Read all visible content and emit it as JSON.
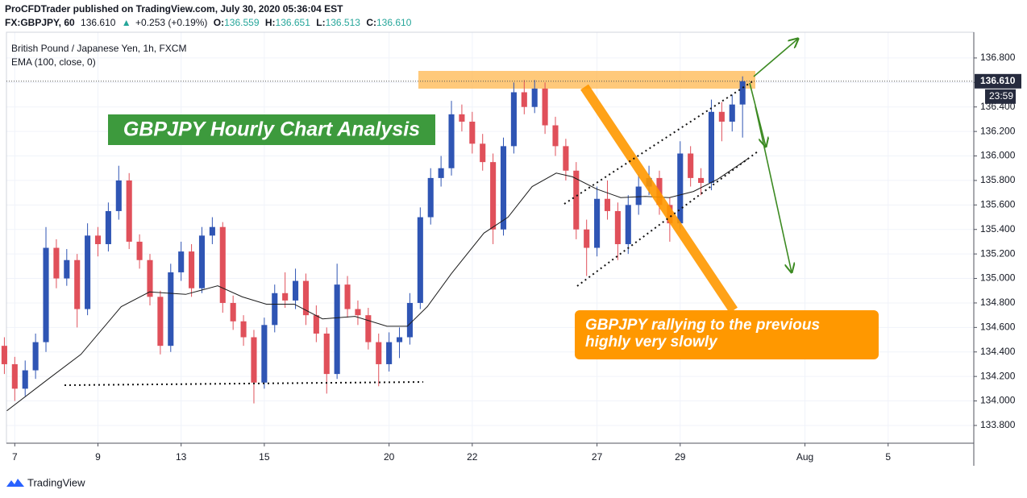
{
  "header": {
    "author_line": "ProCFDTrader published on TradingView.com, July 30, 2020 05:36:04 EST",
    "symbol": "FX:GBPJPY, 60",
    "last": "136.610",
    "change": "+0.253 (+0.19%)",
    "open_label": "O:",
    "open": "136.559",
    "high_label": "H:",
    "high": "136.651",
    "low_label": "L:",
    "low": "136.513",
    "close_label": "C:",
    "close": "136.610"
  },
  "footer": {
    "brand": "TradingView"
  },
  "chart_data": {
    "type": "candlestick",
    "subtitle": "British Pound / Japanese Yen, 1h, FXCM",
    "title": "GBPJPY Hourly Chart Analysis",
    "annotation": [
      "GBPJPY rallying to the previous",
      "highly very slowly"
    ],
    "up_color": "#2f55b4",
    "down_color": "#e0505a",
    "grid": true,
    "x": [
      -0.25,
      0,
      0.25,
      0.5,
      0.75,
      1,
      1.25,
      1.5,
      1.75,
      2,
      2.25,
      2.5,
      2.75,
      3,
      3.25,
      3.5,
      3.75,
      4,
      4.25,
      4.5,
      4.75,
      5,
      5.25,
      5.5,
      5.75,
      6,
      6.25,
      6.5,
      6.75,
      7,
      7.25,
      7.5,
      7.75,
      8,
      8.25,
      8.5,
      8.75,
      9,
      9.25,
      9.5,
      9.75,
      10,
      10.25,
      10.5,
      10.75,
      11,
      11.25,
      11.5,
      11.75,
      12,
      12.25,
      12.5,
      12.75,
      13,
      13.25,
      13.5,
      13.75,
      14,
      14.25,
      14.5,
      14.75,
      15,
      15.25,
      15.5,
      15.75,
      16,
      16.25,
      16.5,
      16.75,
      17,
      17.25,
      17.5
    ],
    "open": [
      134.45,
      134.3,
      134.1,
      134.25,
      134.48,
      135.25,
      135.0,
      135.15,
      134.75,
      135.35,
      135.28,
      135.55,
      135.8,
      135.3,
      135.15,
      134.85,
      134.45,
      135.05,
      135.22,
      134.92,
      135.35,
      135.42,
      134.8,
      134.65,
      134.52,
      134.15,
      134.62,
      134.88,
      134.82,
      134.98,
      134.7,
      134.55,
      134.22,
      134.95,
      134.75,
      134.7,
      134.48,
      134.3,
      134.48,
      134.52,
      134.8,
      135.5,
      135.82,
      135.9,
      136.34,
      136.28,
      136.1,
      135.95,
      135.4,
      136.08,
      136.52,
      136.4,
      136.55,
      136.25,
      136.08,
      135.88,
      135.4,
      135.25,
      135.65,
      135.55,
      135.28,
      135.6,
      135.75,
      135.82,
      135.6,
      135.45,
      136.02,
      135.82,
      135.78,
      136.36,
      136.28,
      136.42
    ],
    "high": [
      134.52,
      134.36,
      134.33,
      134.55,
      135.42,
      135.32,
      135.24,
      135.2,
      135.45,
      135.42,
      135.62,
      135.92,
      135.86,
      135.36,
      135.2,
      134.9,
      135.12,
      135.3,
      135.28,
      135.42,
      135.5,
      135.46,
      134.86,
      134.7,
      134.58,
      134.68,
      134.95,
      135.05,
      135.08,
      135.04,
      134.78,
      134.6,
      135.12,
      135.02,
      134.82,
      134.76,
      134.55,
      134.56,
      134.6,
      134.88,
      135.58,
      135.9,
      136.0,
      136.45,
      136.42,
      136.36,
      136.18,
      136.02,
      136.15,
      136.6,
      136.62,
      136.62,
      136.6,
      136.32,
      136.14,
      135.95,
      135.48,
      135.75,
      135.8,
      135.62,
      135.68,
      135.85,
      135.92,
      135.88,
      135.66,
      136.12,
      136.08,
      135.9,
      136.46,
      136.44,
      136.5,
      136.65
    ],
    "low": [
      134.22,
      134.0,
      134.04,
      134.18,
      134.4,
      134.92,
      134.94,
      134.6,
      134.7,
      135.18,
      135.22,
      135.48,
      135.24,
      135.08,
      134.78,
      134.38,
      134.4,
      134.98,
      134.85,
      134.88,
      135.28,
      134.72,
      134.58,
      134.45,
      133.98,
      134.1,
      134.56,
      134.76,
      134.75,
      134.62,
      134.48,
      134.06,
      134.18,
      134.68,
      134.62,
      134.42,
      134.12,
      134.24,
      134.35,
      134.46,
      134.75,
      135.44,
      135.75,
      135.84,
      136.2,
      136.02,
      135.88,
      135.28,
      135.35,
      136.02,
      136.34,
      136.35,
      136.18,
      136.0,
      135.8,
      135.32,
      135.02,
      135.18,
      135.48,
      135.15,
      135.2,
      135.52,
      135.68,
      135.52,
      135.3,
      135.4,
      135.75,
      135.68,
      135.72,
      136.12,
      136.2,
      136.15
    ],
    "close": [
      134.3,
      134.1,
      134.25,
      134.48,
      135.25,
      135.0,
      135.15,
      134.75,
      135.35,
      135.28,
      135.55,
      135.8,
      135.3,
      135.15,
      134.85,
      134.45,
      135.05,
      135.22,
      134.92,
      135.35,
      135.42,
      134.8,
      134.65,
      134.52,
      134.15,
      134.62,
      134.88,
      134.82,
      134.98,
      134.7,
      134.55,
      134.22,
      134.95,
      134.75,
      134.7,
      134.48,
      134.3,
      134.48,
      134.52,
      134.8,
      135.5,
      135.82,
      135.9,
      136.34,
      136.28,
      136.1,
      135.95,
      135.4,
      136.08,
      136.52,
      136.4,
      136.55,
      136.25,
      136.08,
      135.88,
      135.4,
      135.25,
      135.65,
      135.55,
      135.28,
      135.6,
      135.75,
      135.82,
      135.6,
      135.45,
      136.02,
      135.82,
      135.78,
      136.36,
      136.28,
      136.42,
      136.61
    ],
    "ema": {
      "name": "EMA (100, close, 0)",
      "color": "#1c1c1c",
      "x": [
        -0.19,
        0.81,
        1.59,
        2.56,
        3.24,
        4.11,
        4.88,
        5.47,
        6.05,
        6.72,
        7.4,
        8.18,
        8.95,
        9.44,
        9.92,
        10.5,
        11.28,
        11.86,
        12.44,
        13.02,
        13.41,
        13.99,
        14.57,
        15.16,
        15.74,
        16.32,
        16.9,
        17.64
      ],
      "values": [
        133.92,
        134.18,
        134.38,
        134.77,
        134.89,
        134.87,
        134.94,
        134.85,
        134.79,
        134.79,
        134.67,
        134.69,
        134.61,
        134.61,
        134.77,
        135.04,
        135.37,
        135.5,
        135.75,
        135.86,
        135.83,
        135.73,
        135.66,
        135.67,
        135.66,
        135.71,
        135.81,
        135.98
      ]
    },
    "last_price": {
      "value": 136.61,
      "label": "136.610"
    },
    "countdown": "23:59",
    "xlim": [
      -0.2,
      23.06
    ],
    "xticks": [
      {
        "value": 0,
        "label": "7"
      },
      {
        "value": 2,
        "label": "9"
      },
      {
        "value": 4,
        "label": "13"
      },
      {
        "value": 6,
        "label": "15"
      },
      {
        "value": 9,
        "label": "20"
      },
      {
        "value": 11,
        "label": "22"
      },
      {
        "value": 14,
        "label": "27"
      },
      {
        "value": 16,
        "label": "29"
      },
      {
        "value": 19,
        "label": "Aug"
      },
      {
        "value": 21,
        "label": "5"
      }
    ],
    "ylim": [
      133.655,
      137.01
    ],
    "yticks": [
      {
        "value": 133.8,
        "label": "133.800"
      },
      {
        "value": 134,
        "label": "134.000"
      },
      {
        "value": 134.2,
        "label": "134.200"
      },
      {
        "value": 134.4,
        "label": "134.400"
      },
      {
        "value": 134.6,
        "label": "134.600"
      },
      {
        "value": 134.8,
        "label": "134.800"
      },
      {
        "value": 135,
        "label": "135.000"
      },
      {
        "value": 135.2,
        "label": "135.200"
      },
      {
        "value": 135.4,
        "label": "135.400"
      },
      {
        "value": 135.6,
        "label": "135.600"
      },
      {
        "value": 135.8,
        "label": "135.800"
      },
      {
        "value": 136,
        "label": "136.000"
      },
      {
        "value": 136.2,
        "label": "136.200"
      },
      {
        "value": 136.4,
        "label": "136.400"
      },
      {
        "value": 136.6,
        "label": "136.600"
      },
      {
        "value": 136.8,
        "label": "136.800"
      }
    ]
  }
}
